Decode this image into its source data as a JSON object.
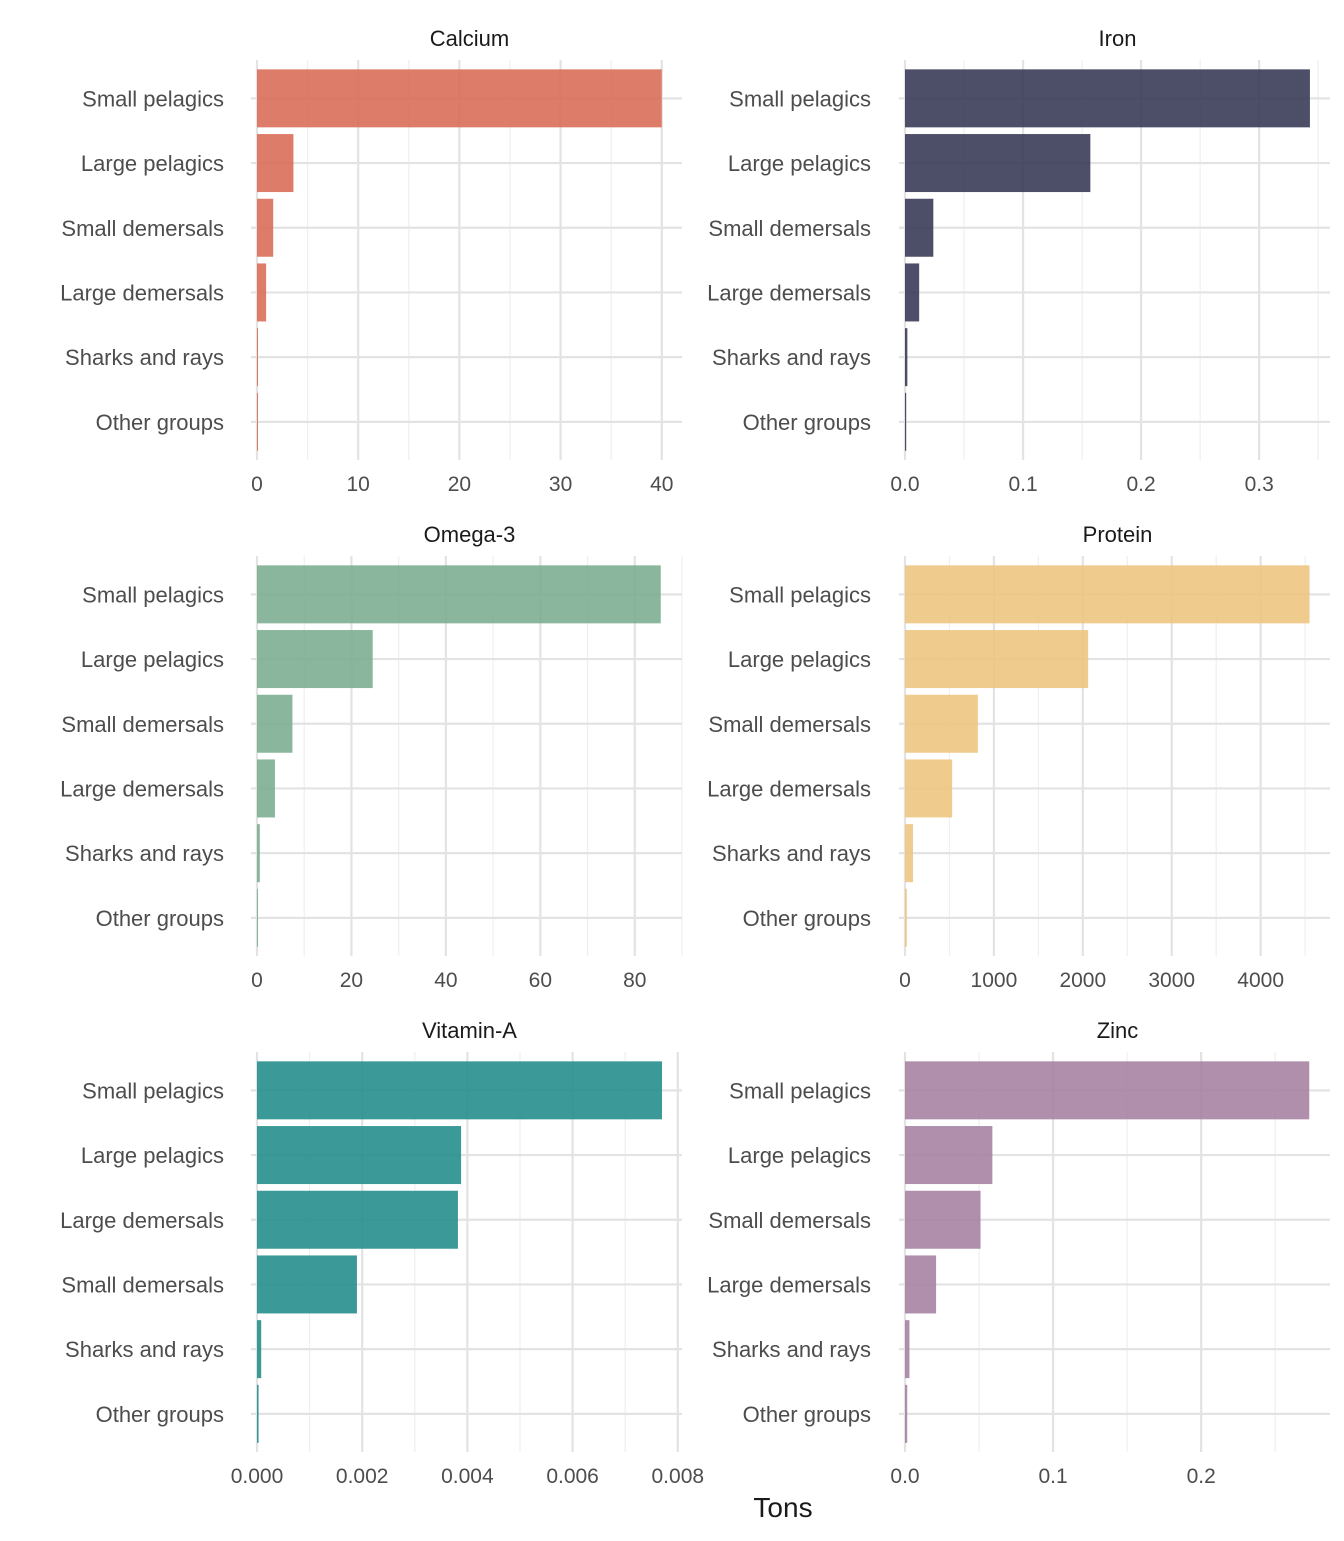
{
  "chart_data": {
    "type": "bar",
    "orientation": "horizontal",
    "xlabel": "Tons",
    "grid": true,
    "legend": "none",
    "facets": [
      {
        "title": "Calcium",
        "color": "#DA6A55",
        "categories": [
          "Small pelagics",
          "Large pelagics",
          "Small demersals",
          "Large demersals",
          "Sharks and rays",
          "Other groups"
        ],
        "values": [
          40.0,
          3.6,
          1.6,
          0.9,
          0.1,
          0.05
        ],
        "xlim": [
          0,
          42
        ],
        "ticks": [
          0,
          10,
          20,
          30,
          40
        ],
        "tick_labels": [
          "0",
          "10",
          "20",
          "30",
          "40"
        ]
      },
      {
        "title": "Iron",
        "color": "#343652",
        "categories": [
          "Small pelagics",
          "Large pelagics",
          "Small demersals",
          "Large demersals",
          "Sharks and rays",
          "Other groups"
        ],
        "values": [
          0.343,
          0.157,
          0.024,
          0.012,
          0.002,
          0.001
        ],
        "xlim": [
          0,
          0.36
        ],
        "ticks": [
          0,
          0.1,
          0.2,
          0.3
        ],
        "tick_labels": [
          "0.0",
          "0.1",
          "0.2",
          "0.3"
        ]
      },
      {
        "title": "Omega-3",
        "color": "#79AC8E",
        "categories": [
          "Small pelagics",
          "Large pelagics",
          "Small demersals",
          "Large demersals",
          "Sharks and rays",
          "Other groups"
        ],
        "values": [
          85.5,
          24.5,
          7.5,
          3.8,
          0.6,
          0.2
        ],
        "xlim": [
          0,
          90
        ],
        "ticks": [
          0,
          20,
          40,
          60,
          80
        ],
        "tick_labels": [
          "0",
          "20",
          "40",
          "60",
          "80"
        ]
      },
      {
        "title": "Protein",
        "color": "#EEC47E",
        "categories": [
          "Small pelagics",
          "Large pelagics",
          "Small demersals",
          "Large demersals",
          "Sharks and rays",
          "Other groups"
        ],
        "values": [
          4550,
          2060,
          820,
          530,
          90,
          20
        ],
        "xlim": [
          0,
          4780
        ],
        "ticks": [
          0,
          1000,
          2000,
          3000,
          4000
        ],
        "tick_labels": [
          "0",
          "1000",
          "2000",
          "3000",
          "4000"
        ]
      },
      {
        "title": "Vitamin-A",
        "color": "#208C89",
        "categories": [
          "Small pelagics",
          "Large pelagics",
          "Large demersals",
          "Small demersals",
          "Sharks and rays",
          "Other groups"
        ],
        "values": [
          0.0077,
          0.00388,
          0.00382,
          0.0019,
          8e-05,
          3e-05
        ],
        "xlim": [
          0,
          0.00808
        ],
        "ticks": [
          0,
          0.002,
          0.004,
          0.006,
          0.008
        ],
        "tick_labels": [
          "0.000",
          "0.002",
          "0.004",
          "0.006",
          "0.008"
        ]
      },
      {
        "title": "Zinc",
        "color": "#A47FA0",
        "categories": [
          "Small pelagics",
          "Large pelagics",
          "Small demersals",
          "Large demersals",
          "Sharks and rays",
          "Other groups"
        ],
        "values": [
          0.273,
          0.059,
          0.051,
          0.021,
          0.003,
          0.0015
        ],
        "xlim": [
          0,
          0.287
        ],
        "ticks": [
          0,
          0.1,
          0.2
        ],
        "tick_labels": [
          "0.0",
          "0.1",
          "0.2"
        ]
      }
    ]
  }
}
